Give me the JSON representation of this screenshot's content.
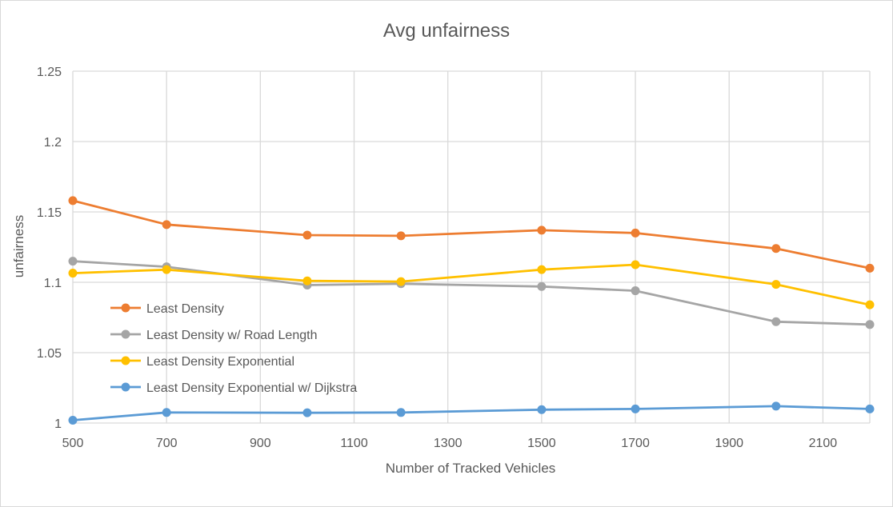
{
  "chart_data": {
    "type": "line",
    "title": "Avg unfairness",
    "xlabel": "Number of Tracked Vehicles",
    "ylabel": "unfairness",
    "xlim": [
      500,
      2200
    ],
    "ylim": [
      1,
      1.25
    ],
    "x_ticks": [
      500,
      700,
      900,
      1100,
      1300,
      1500,
      1700,
      1900,
      2100
    ],
    "y_ticks": [
      1,
      1.05,
      1.1,
      1.15,
      1.2,
      1.25
    ],
    "x_tick_labels": [
      "500",
      "700",
      "900",
      "1100",
      "1300",
      "1500",
      "1700",
      "1900",
      "2100"
    ],
    "y_tick_labels": [
      "1",
      "1.05",
      "1.1",
      "1.15",
      "1.2",
      "1.25"
    ],
    "grid": true,
    "legend_position": "left",
    "x": [
      500,
      700,
      1000,
      1200,
      1500,
      1700,
      2000,
      2200
    ],
    "series": [
      {
        "name": "Least Density",
        "color": "#ED7D31",
        "values": [
          1.158,
          1.141,
          1.1335,
          1.133,
          1.137,
          1.135,
          1.124,
          1.11
        ]
      },
      {
        "name": "Least Density w/ Road Length",
        "color": "#A5A5A5",
        "values": [
          1.115,
          1.111,
          1.098,
          1.099,
          1.097,
          1.094,
          1.072,
          1.07
        ]
      },
      {
        "name": "Least Density Exponential",
        "color": "#FFC000",
        "values": [
          1.1065,
          1.109,
          1.101,
          1.1005,
          1.109,
          1.1125,
          1.0985,
          1.084
        ]
      },
      {
        "name": "Least Density Exponential w/ Dijkstra",
        "color": "#5B9BD5",
        "values": [
          1.002,
          1.0075,
          1.0073,
          1.0075,
          1.0095,
          1.01,
          1.012,
          1.01
        ]
      }
    ]
  }
}
